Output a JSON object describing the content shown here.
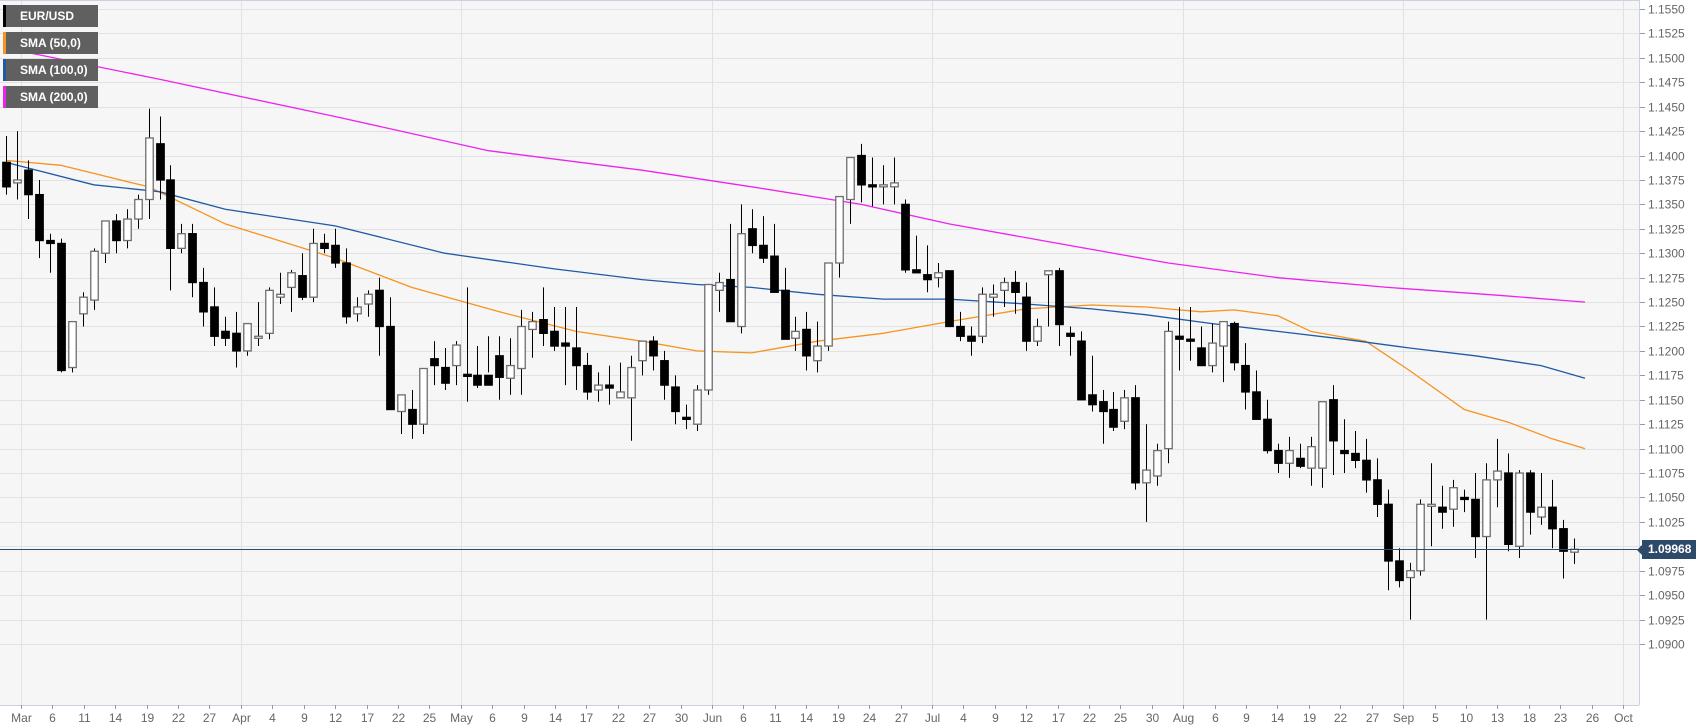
{
  "chart_data": {
    "type": "candlestick",
    "title": "EUR/USD",
    "symbol": "EUR/USD",
    "timeframe": "daily",
    "last_price": "1.09968",
    "y_axis": {
      "ticks": [
        "1.1550",
        "1.1525",
        "1.1500",
        "1.1475",
        "1.1450",
        "1.1425",
        "1.1400",
        "1.1375",
        "1.1350",
        "1.1325",
        "1.1300",
        "1.1275",
        "1.1250",
        "1.1225",
        "1.1200",
        "1.1175",
        "1.1150",
        "1.1125",
        "1.1100",
        "1.1075",
        "1.1050",
        "1.1025",
        "1.1000",
        "1.0975",
        "1.0950",
        "1.0925",
        "1.0900"
      ],
      "range": [
        1.0885,
        1.1555
      ],
      "position": "right"
    },
    "x_axis": {
      "labels": [
        "Mar",
        "6",
        "11",
        "14",
        "19",
        "22",
        "27",
        "Apr",
        "4",
        "9",
        "12",
        "17",
        "22",
        "25",
        "May",
        "6",
        "9",
        "14",
        "17",
        "22",
        "27",
        "30",
        "Jun",
        "6",
        "11",
        "14",
        "19",
        "24",
        "27",
        "Jul",
        "4",
        "9",
        "12",
        "17",
        "22",
        "25",
        "30",
        "Aug",
        "6",
        "9",
        "14",
        "19",
        "22",
        "27",
        "Sep",
        "5",
        "10",
        "13",
        "18",
        "23",
        "26",
        "Oct"
      ]
    },
    "grid": true,
    "legend": [
      {
        "label": "EUR/USD",
        "color": "#000000"
      },
      {
        "label": "SMA (50,0)",
        "color": "#f7931e"
      },
      {
        "label": "SMA (100,0)",
        "color": "#1f5aa6"
      },
      {
        "label": "SMA (200,0)",
        "color": "#ee22ee"
      }
    ],
    "candles": [
      [
        1.1393,
        1.142,
        1.136,
        1.1368
      ],
      [
        1.1372,
        1.1425,
        1.1355,
        1.1375
      ],
      [
        1.1385,
        1.1395,
        1.1335,
        1.136
      ],
      [
        1.136,
        1.1375,
        1.1295,
        1.1313
      ],
      [
        1.1313,
        1.132,
        1.128,
        1.131
      ],
      [
        1.131,
        1.1315,
        1.1178,
        1.118
      ],
      [
        1.1183,
        1.123,
        1.1178,
        1.123
      ],
      [
        1.1238,
        1.126,
        1.1225,
        1.1255
      ],
      [
        1.1252,
        1.1305,
        1.1242,
        1.1302
      ],
      [
        1.13,
        1.1333,
        1.129,
        1.1333
      ],
      [
        1.1333,
        1.134,
        1.13,
        1.1313
      ],
      [
        1.1313,
        1.1345,
        1.1305,
        1.1335
      ],
      [
        1.1335,
        1.136,
        1.1325,
        1.1355
      ],
      [
        1.1355,
        1.1448,
        1.1335,
        1.1418
      ],
      [
        1.1412,
        1.144,
        1.1355,
        1.1375
      ],
      [
        1.1375,
        1.139,
        1.1262,
        1.1305
      ],
      [
        1.1305,
        1.133,
        1.13,
        1.132
      ],
      [
        1.132,
        1.133,
        1.1255,
        1.127
      ],
      [
        1.127,
        1.1285,
        1.1225,
        1.124
      ],
      [
        1.1245,
        1.1265,
        1.1205,
        1.1215
      ],
      [
        1.122,
        1.1235,
        1.1205,
        1.1213
      ],
      [
        1.1218,
        1.124,
        1.1183,
        1.12
      ],
      [
        1.12,
        1.1228,
        1.1195,
        1.1228
      ],
      [
        1.1215,
        1.125,
        1.1205,
        1.1215
      ],
      [
        1.1218,
        1.1265,
        1.1212,
        1.1262
      ],
      [
        1.1255,
        1.128,
        1.1248,
        1.1258
      ],
      [
        1.1265,
        1.1283,
        1.124,
        1.128
      ],
      [
        1.1277,
        1.13,
        1.1252,
        1.1255
      ],
      [
        1.1255,
        1.1325,
        1.125,
        1.131
      ],
      [
        1.131,
        1.132,
        1.13,
        1.1305
      ],
      [
        1.1308,
        1.1325,
        1.1285,
        1.129
      ],
      [
        1.129,
        1.1305,
        1.1228,
        1.1235
      ],
      [
        1.1238,
        1.1255,
        1.123,
        1.1245
      ],
      [
        1.1248,
        1.1262,
        1.1235,
        1.1258
      ],
      [
        1.1262,
        1.1275,
        1.1195,
        1.1225
      ],
      [
        1.1225,
        1.1255,
        1.1165,
        1.114
      ],
      [
        1.1138,
        1.115,
        1.1115,
        1.1155
      ],
      [
        1.114,
        1.116,
        1.111,
        1.1125
      ],
      [
        1.1125,
        1.1182,
        1.1115,
        1.1182
      ],
      [
        1.1192,
        1.121,
        1.1165,
        1.1185
      ],
      [
        1.1183,
        1.1203,
        1.116,
        1.1167
      ],
      [
        1.1185,
        1.121,
        1.1165,
        1.1206
      ],
      [
        1.1176,
        1.1265,
        1.1148,
        1.1175
      ],
      [
        1.1175,
        1.1205,
        1.1162,
        1.1165
      ],
      [
        1.1175,
        1.1215,
        1.1178,
        1.1165
      ],
      [
        1.1195,
        1.1215,
        1.115,
        1.1173
      ],
      [
        1.1172,
        1.1213,
        1.1155,
        1.1185
      ],
      [
        1.1182,
        1.1242,
        1.1155,
        1.1225
      ],
      [
        1.1222,
        1.124,
        1.1193,
        1.123
      ],
      [
        1.1232,
        1.1265,
        1.1205,
        1.1218
      ],
      [
        1.122,
        1.1245,
        1.12,
        1.1205
      ],
      [
        1.1208,
        1.1245,
        1.1165,
        1.1205
      ],
      [
        1.1203,
        1.1245,
        1.116,
        1.1185
      ],
      [
        1.1185,
        1.1198,
        1.115,
        1.1158
      ],
      [
        1.116,
        1.1178,
        1.1148,
        1.1165
      ],
      [
        1.1165,
        1.1185,
        1.1145,
        1.1162
      ],
      [
        1.1152,
        1.1188,
        1.1155,
        1.1158
      ],
      [
        1.1152,
        1.1195,
        1.1108,
        1.1183
      ],
      [
        1.119,
        1.121,
        1.1175,
        1.121
      ],
      [
        1.121,
        1.1215,
        1.118,
        1.1195
      ],
      [
        1.119,
        1.12,
        1.115,
        1.1165
      ],
      [
        1.1163,
        1.1175,
        1.1125,
        1.1138
      ],
      [
        1.1132,
        1.1145,
        1.112,
        1.113
      ],
      [
        1.1125,
        1.1165,
        1.1118,
        1.116
      ],
      [
        1.116,
        1.126,
        1.1155,
        1.1268
      ],
      [
        1.1262,
        1.128,
        1.124,
        1.127
      ],
      [
        1.1273,
        1.133,
        1.1245,
        1.123
      ],
      [
        1.1225,
        1.135,
        1.1218,
        1.132
      ],
      [
        1.1325,
        1.1345,
        1.13,
        1.1308
      ],
      [
        1.1308,
        1.1338,
        1.129,
        1.1295
      ],
      [
        1.1297,
        1.133,
        1.126,
        1.126
      ],
      [
        1.1262,
        1.1285,
        1.1228,
        1.1212
      ],
      [
        1.1213,
        1.1235,
        1.12,
        1.122
      ],
      [
        1.1222,
        1.124,
        1.118,
        1.1195
      ],
      [
        1.119,
        1.123,
        1.1178,
        1.1205
      ],
      [
        1.1205,
        1.1285,
        1.12,
        1.129
      ],
      [
        1.129,
        1.1345,
        1.1275,
        1.1358
      ],
      [
        1.1355,
        1.138,
        1.133,
        1.1398
      ],
      [
        1.14,
        1.1412,
        1.1352,
        1.137
      ],
      [
        1.137,
        1.1398,
        1.1348,
        1.1368
      ],
      [
        1.1368,
        1.139,
        1.135,
        1.137
      ],
      [
        1.1368,
        1.1398,
        1.135,
        1.1372
      ],
      [
        1.135,
        1.1355,
        1.128,
        1.1283
      ],
      [
        1.1283,
        1.1318,
        1.128,
        1.128
      ],
      [
        1.1278,
        1.1308,
        1.126,
        1.1273
      ],
      [
        1.1275,
        1.129,
        1.1265,
        1.128
      ],
      [
        1.1282,
        1.1282,
        1.1225,
        1.1225
      ],
      [
        1.1225,
        1.124,
        1.121,
        1.1215
      ],
      [
        1.1215,
        1.1225,
        1.1195,
        1.121
      ],
      [
        1.1215,
        1.1265,
        1.1208,
        1.1258
      ],
      [
        1.1255,
        1.1268,
        1.1235,
        1.1258
      ],
      [
        1.1262,
        1.1275,
        1.1245,
        1.127
      ],
      [
        1.127,
        1.1282,
        1.1238,
        1.126
      ],
      [
        1.1255,
        1.127,
        1.12,
        1.121
      ],
      [
        1.121,
        1.1233,
        1.1205,
        1.1225
      ],
      [
        1.1278,
        1.1282,
        1.1225,
        1.1282
      ],
      [
        1.1282,
        1.1285,
        1.1205,
        1.1227
      ],
      [
        1.1218,
        1.1225,
        1.1195,
        1.1215
      ],
      [
        1.121,
        1.122,
        1.115,
        1.115
      ],
      [
        1.1155,
        1.1195,
        1.1138,
        1.1145
      ],
      [
        1.1148,
        1.116,
        1.1105,
        1.1138
      ],
      [
        1.114,
        1.1158,
        1.1118,
        1.1122
      ],
      [
        1.1128,
        1.116,
        1.112,
        1.1152
      ],
      [
        1.1152,
        1.1165,
        1.1058,
        1.1065
      ],
      [
        1.1065,
        1.1125,
        1.1025,
        1.1078
      ],
      [
        1.1072,
        1.1105,
        1.1062,
        1.1098
      ],
      [
        1.11,
        1.123,
        1.1085,
        1.122
      ],
      [
        1.1215,
        1.1245,
        1.118,
        1.1212
      ],
      [
        1.1212,
        1.1245,
        1.119,
        1.121
      ],
      [
        1.1203,
        1.1225,
        1.1185,
        1.1185
      ],
      [
        1.1185,
        1.1228,
        1.1178,
        1.1208
      ],
      [
        1.1205,
        1.123,
        1.1168,
        1.123
      ],
      [
        1.1228,
        1.123,
        1.118,
        1.1188
      ],
      [
        1.1185,
        1.1208,
        1.114,
        1.1158
      ],
      [
        1.1158,
        1.118,
        1.114,
        1.113
      ],
      [
        1.113,
        1.115,
        1.1095,
        1.1098
      ],
      [
        1.1098,
        1.1105,
        1.1075,
        1.1085
      ],
      [
        1.1085,
        1.1112,
        1.107,
        1.1098
      ],
      [
        1.109,
        1.1105,
        1.108,
        1.1082
      ],
      [
        1.108,
        1.1112,
        1.1062,
        1.1102
      ],
      [
        1.108,
        1.114,
        1.106,
        1.1148
      ],
      [
        1.115,
        1.1165,
        1.1073,
        1.1108
      ],
      [
        1.1098,
        1.113,
        1.1075,
        1.1095
      ],
      [
        1.1095,
        1.1118,
        1.108,
        1.1088
      ],
      [
        1.1088,
        1.111,
        1.1055,
        1.1068
      ],
      [
        1.1068,
        1.109,
        1.103,
        1.1043
      ],
      [
        1.1043,
        1.1058,
        1.0955,
        1.0985
      ],
      [
        1.0985,
        1.0998,
        1.0958,
        1.0965
      ],
      [
        1.0968,
        1.0983,
        1.0925,
        1.0975
      ],
      [
        1.0975,
        1.1048,
        1.097,
        1.1043
      ],
      [
        1.1043,
        1.1085,
        1.1,
        1.1043
      ],
      [
        1.104,
        1.1062,
        1.1018,
        1.1035
      ],
      [
        1.1038,
        1.1068,
        1.102,
        1.106
      ],
      [
        1.105,
        1.1058,
        1.1035,
        1.1048
      ],
      [
        1.1048,
        1.1075,
        1.0988,
        1.101
      ],
      [
        1.101,
        1.1085,
        1.0925,
        1.1068
      ],
      [
        1.1068,
        1.111,
        1.104,
        1.1077
      ],
      [
        1.1075,
        1.1095,
        1.0995,
        1.1002
      ],
      [
        1.1,
        1.1078,
        1.0988,
        1.1075
      ],
      [
        1.1075,
        1.1078,
        1.1012,
        1.1035
      ],
      [
        1.103,
        1.1075,
        1.1022,
        1.104
      ],
      [
        1.104,
        1.1068,
        1.0998,
        1.1018
      ],
      [
        1.1018,
        1.1027,
        1.0967,
        1.0995
      ],
      [
        1.0994,
        1.1008,
        1.0982,
        1.0997
      ]
    ],
    "sma50_points": [
      [
        0,
        1.1395
      ],
      [
        5,
        1.139
      ],
      [
        13,
        1.1368
      ],
      [
        20,
        1.133
      ],
      [
        30,
        1.1295
      ],
      [
        37,
        1.1265
      ],
      [
        45,
        1.124
      ],
      [
        52,
        1.122
      ],
      [
        58,
        1.121
      ],
      [
        63,
        1.12
      ],
      [
        68,
        1.1198
      ],
      [
        74,
        1.121
      ],
      [
        80,
        1.1218
      ],
      [
        86,
        1.123
      ],
      [
        93,
        1.1243
      ],
      [
        99,
        1.1247
      ],
      [
        104,
        1.1245
      ],
      [
        109,
        1.124
      ],
      [
        112,
        1.1242
      ],
      [
        116,
        1.1236
      ],
      [
        119,
        1.122
      ],
      [
        124,
        1.121
      ],
      [
        128,
        1.118
      ],
      [
        133,
        1.114
      ],
      [
        137,
        1.1127
      ],
      [
        141,
        1.111
      ],
      [
        144,
        1.11
      ]
    ],
    "sma100_points": [
      [
        0,
        1.1393
      ],
      [
        8,
        1.137
      ],
      [
        14,
        1.1363
      ],
      [
        20,
        1.1345
      ],
      [
        30,
        1.1328
      ],
      [
        40,
        1.13
      ],
      [
        50,
        1.1284
      ],
      [
        58,
        1.1273
      ],
      [
        63,
        1.1268
      ],
      [
        68,
        1.1265
      ],
      [
        74,
        1.1258
      ],
      [
        80,
        1.1253
      ],
      [
        86,
        1.1253
      ],
      [
        93,
        1.1248
      ],
      [
        99,
        1.1243
      ],
      [
        104,
        1.1237
      ],
      [
        110,
        1.1228
      ],
      [
        116,
        1.122
      ],
      [
        122,
        1.1212
      ],
      [
        128,
        1.1203
      ],
      [
        134,
        1.1195
      ],
      [
        140,
        1.1185
      ],
      [
        144,
        1.1172
      ]
    ],
    "sma200_points": [
      [
        0,
        1.151
      ],
      [
        14,
        1.1478
      ],
      [
        30,
        1.144
      ],
      [
        44,
        1.1405
      ],
      [
        58,
        1.1385
      ],
      [
        68,
        1.1368
      ],
      [
        78,
        1.135
      ],
      [
        86,
        1.133
      ],
      [
        96,
        1.131
      ],
      [
        106,
        1.129
      ],
      [
        116,
        1.1275
      ],
      [
        126,
        1.1265
      ],
      [
        136,
        1.1257
      ],
      [
        144,
        1.125
      ]
    ]
  },
  "legend": {
    "items": [
      {
        "label": "EUR/USD",
        "color": "#000000"
      },
      {
        "label": "SMA (50,0)",
        "color": "#f7931e"
      },
      {
        "label": "SMA (100,0)",
        "color": "#1f5aa6"
      },
      {
        "label": "SMA (200,0)",
        "color": "#ee22ee"
      }
    ]
  },
  "price_tag": {
    "value": "1.09968",
    "color": "#2e4a6b"
  }
}
